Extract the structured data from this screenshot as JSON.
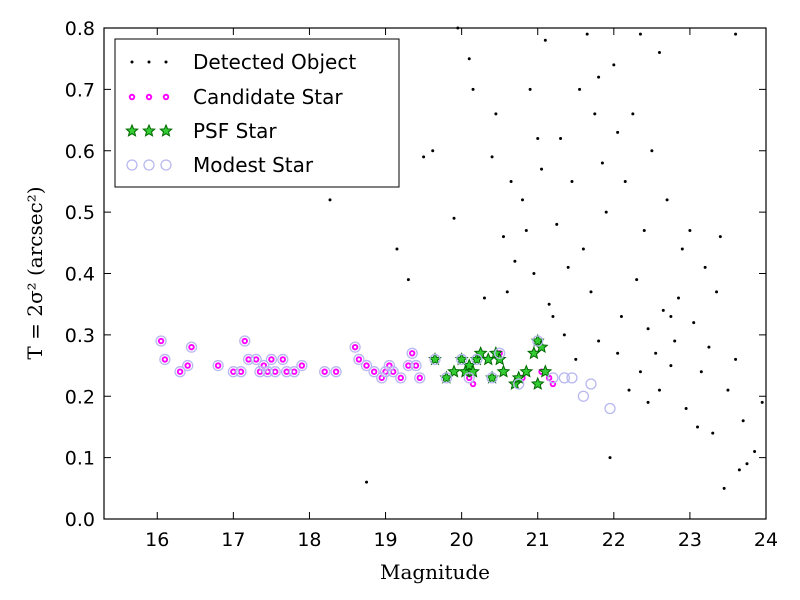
{
  "chart_data": {
    "type": "scatter",
    "xlabel": "Magnitude",
    "ylabel": "T = 2σ² (arcsec²)",
    "xlim": [
      15.3,
      24
    ],
    "ylim": [
      0,
      0.8
    ],
    "xticks": [
      "16",
      "17",
      "18",
      "19",
      "20",
      "21",
      "22",
      "23",
      "24"
    ],
    "yticks": [
      "0.0",
      "0.1",
      "0.2",
      "0.3",
      "0.4",
      "0.5",
      "0.6",
      "0.7",
      "0.8"
    ],
    "grid": false,
    "legend_position": "top-left",
    "series": [
      {
        "name": "Detected Object",
        "marker": "dot",
        "color": "#000000",
        "points": [
          [
            18.27,
            0.52
          ],
          [
            18.75,
            0.06
          ],
          [
            19.15,
            0.44
          ],
          [
            19.3,
            0.39
          ],
          [
            19.5,
            0.59
          ],
          [
            19.62,
            0.6
          ],
          [
            19.9,
            0.49
          ],
          [
            20.3,
            0.36
          ],
          [
            20.55,
            0.46
          ],
          [
            20.1,
            0.75
          ],
          [
            21.95,
            0.1
          ],
          [
            21.35,
            0.3
          ],
          [
            21.5,
            0.26
          ],
          [
            21.2,
            0.33
          ],
          [
            21.7,
            0.37
          ],
          [
            20.8,
            0.52
          ],
          [
            21.0,
            0.62
          ],
          [
            20.4,
            0.59
          ],
          [
            20.9,
            0.7
          ],
          [
            21.1,
            0.78
          ],
          [
            23.45,
            0.05
          ],
          [
            23.65,
            0.08
          ],
          [
            23.75,
            0.09
          ],
          [
            23.85,
            0.11
          ],
          [
            23.95,
            0.19
          ],
          [
            23.6,
            0.26
          ],
          [
            23.5,
            0.21
          ],
          [
            23.3,
            0.14
          ],
          [
            23.7,
            0.16
          ],
          [
            22.35,
            0.79
          ],
          [
            22.6,
            0.76
          ],
          [
            23.6,
            0.79
          ],
          [
            22.4,
            0.47
          ],
          [
            22.75,
            0.33
          ],
          [
            22.8,
            0.29
          ],
          [
            23.4,
            0.46
          ],
          [
            22.9,
            0.44
          ],
          [
            22.2,
            0.21
          ],
          [
            22.45,
            0.19
          ],
          [
            21.8,
            0.72
          ],
          [
            21.65,
            0.79
          ],
          [
            19.95,
            0.8
          ],
          [
            20.15,
            0.7
          ],
          [
            20.45,
            0.66
          ],
          [
            20.65,
            0.55
          ],
          [
            20.7,
            0.42
          ],
          [
            20.95,
            0.4
          ],
          [
            21.25,
            0.48
          ],
          [
            21.45,
            0.55
          ],
          [
            21.85,
            0.58
          ],
          [
            22.05,
            0.63
          ],
          [
            22.15,
            0.55
          ],
          [
            22.3,
            0.39
          ],
          [
            22.55,
            0.27
          ],
          [
            22.65,
            0.34
          ],
          [
            22.85,
            0.36
          ],
          [
            23.05,
            0.32
          ],
          [
            23.15,
            0.24
          ],
          [
            23.25,
            0.28
          ],
          [
            21.55,
            0.7
          ],
          [
            21.75,
            0.66
          ],
          [
            22.0,
            0.74
          ],
          [
            22.25,
            0.66
          ],
          [
            22.5,
            0.6
          ],
          [
            22.7,
            0.52
          ],
          [
            23.0,
            0.47
          ],
          [
            23.2,
            0.41
          ],
          [
            23.35,
            0.37
          ],
          [
            21.6,
            0.44
          ],
          [
            21.9,
            0.5
          ],
          [
            22.1,
            0.33
          ],
          [
            22.35,
            0.24
          ],
          [
            22.6,
            0.21
          ],
          [
            22.95,
            0.18
          ],
          [
            23.1,
            0.15
          ],
          [
            21.3,
            0.62
          ],
          [
            21.05,
            0.57
          ],
          [
            20.85,
            0.47
          ],
          [
            20.6,
            0.37
          ],
          [
            21.15,
            0.35
          ],
          [
            21.4,
            0.41
          ],
          [
            21.8,
            0.29
          ],
          [
            22.05,
            0.27
          ],
          [
            22.45,
            0.31
          ],
          [
            22.75,
            0.25
          ]
        ]
      },
      {
        "name": "Candidate Star",
        "marker": "dot-ring",
        "color": "#ff00ff",
        "points": [
          [
            16.05,
            0.29
          ],
          [
            16.1,
            0.26
          ],
          [
            16.3,
            0.24
          ],
          [
            16.4,
            0.25
          ],
          [
            16.45,
            0.28
          ],
          [
            16.8,
            0.25
          ],
          [
            17.0,
            0.24
          ],
          [
            17.1,
            0.24
          ],
          [
            17.15,
            0.29
          ],
          [
            17.2,
            0.26
          ],
          [
            17.3,
            0.26
          ],
          [
            17.35,
            0.24
          ],
          [
            17.4,
            0.25
          ],
          [
            17.45,
            0.24
          ],
          [
            17.5,
            0.26
          ],
          [
            17.55,
            0.24
          ],
          [
            17.65,
            0.26
          ],
          [
            17.7,
            0.24
          ],
          [
            17.8,
            0.24
          ],
          [
            17.9,
            0.25
          ],
          [
            18.2,
            0.24
          ],
          [
            18.35,
            0.24
          ],
          [
            18.6,
            0.28
          ],
          [
            18.65,
            0.26
          ],
          [
            18.75,
            0.25
          ],
          [
            18.85,
            0.24
          ],
          [
            18.95,
            0.23
          ],
          [
            19.0,
            0.24
          ],
          [
            19.05,
            0.25
          ],
          [
            19.1,
            0.24
          ],
          [
            19.2,
            0.23
          ],
          [
            19.3,
            0.25
          ],
          [
            19.35,
            0.27
          ],
          [
            19.4,
            0.25
          ],
          [
            19.45,
            0.23
          ],
          [
            20.1,
            0.23
          ],
          [
            20.15,
            0.22
          ],
          [
            20.5,
            0.27
          ],
          [
            20.8,
            0.23
          ],
          [
            21.15,
            0.23
          ],
          [
            21.2,
            0.22
          ],
          [
            21.05,
            0.24
          ]
        ]
      },
      {
        "name": "PSF Star",
        "marker": "star",
        "color": "#00aa00",
        "points": [
          [
            19.65,
            0.26
          ],
          [
            19.8,
            0.23
          ],
          [
            19.9,
            0.24
          ],
          [
            20.0,
            0.26
          ],
          [
            20.05,
            0.24
          ],
          [
            20.1,
            0.25
          ],
          [
            20.15,
            0.24
          ],
          [
            20.2,
            0.26
          ],
          [
            20.25,
            0.27
          ],
          [
            20.35,
            0.26
          ],
          [
            20.4,
            0.23
          ],
          [
            20.45,
            0.27
          ],
          [
            20.5,
            0.26
          ],
          [
            20.55,
            0.24
          ],
          [
            20.7,
            0.22
          ],
          [
            20.75,
            0.23
          ],
          [
            20.85,
            0.24
          ],
          [
            20.95,
            0.27
          ],
          [
            21.0,
            0.29
          ],
          [
            21.05,
            0.28
          ],
          [
            21.0,
            0.22
          ],
          [
            21.1,
            0.24
          ]
        ]
      },
      {
        "name": "Modest Star",
        "marker": "ring",
        "color": "#b8b8f0",
        "points": [
          [
            16.05,
            0.29
          ],
          [
            16.1,
            0.26
          ],
          [
            16.3,
            0.24
          ],
          [
            16.4,
            0.25
          ],
          [
            16.45,
            0.28
          ],
          [
            16.8,
            0.25
          ],
          [
            17.0,
            0.24
          ],
          [
            17.1,
            0.24
          ],
          [
            17.15,
            0.29
          ],
          [
            17.2,
            0.26
          ],
          [
            17.3,
            0.26
          ],
          [
            17.35,
            0.24
          ],
          [
            17.4,
            0.25
          ],
          [
            17.45,
            0.24
          ],
          [
            17.5,
            0.26
          ],
          [
            17.55,
            0.24
          ],
          [
            17.65,
            0.26
          ],
          [
            17.7,
            0.24
          ],
          [
            17.8,
            0.24
          ],
          [
            17.9,
            0.25
          ],
          [
            18.2,
            0.24
          ],
          [
            18.35,
            0.24
          ],
          [
            18.6,
            0.28
          ],
          [
            18.65,
            0.26
          ],
          [
            18.75,
            0.25
          ],
          [
            18.85,
            0.24
          ],
          [
            18.95,
            0.23
          ],
          [
            19.0,
            0.24
          ],
          [
            19.05,
            0.25
          ],
          [
            19.1,
            0.24
          ],
          [
            19.2,
            0.23
          ],
          [
            19.3,
            0.25
          ],
          [
            19.35,
            0.27
          ],
          [
            19.4,
            0.25
          ],
          [
            19.45,
            0.23
          ],
          [
            19.65,
            0.26
          ],
          [
            19.8,
            0.23
          ],
          [
            20.0,
            0.26
          ],
          [
            20.1,
            0.23
          ],
          [
            20.2,
            0.26
          ],
          [
            20.4,
            0.23
          ],
          [
            20.5,
            0.27
          ],
          [
            20.75,
            0.22
          ],
          [
            21.0,
            0.29
          ],
          [
            21.2,
            0.23
          ],
          [
            21.35,
            0.23
          ],
          [
            21.45,
            0.23
          ],
          [
            21.6,
            0.2
          ],
          [
            21.7,
            0.22
          ],
          [
            21.95,
            0.18
          ]
        ]
      }
    ]
  }
}
